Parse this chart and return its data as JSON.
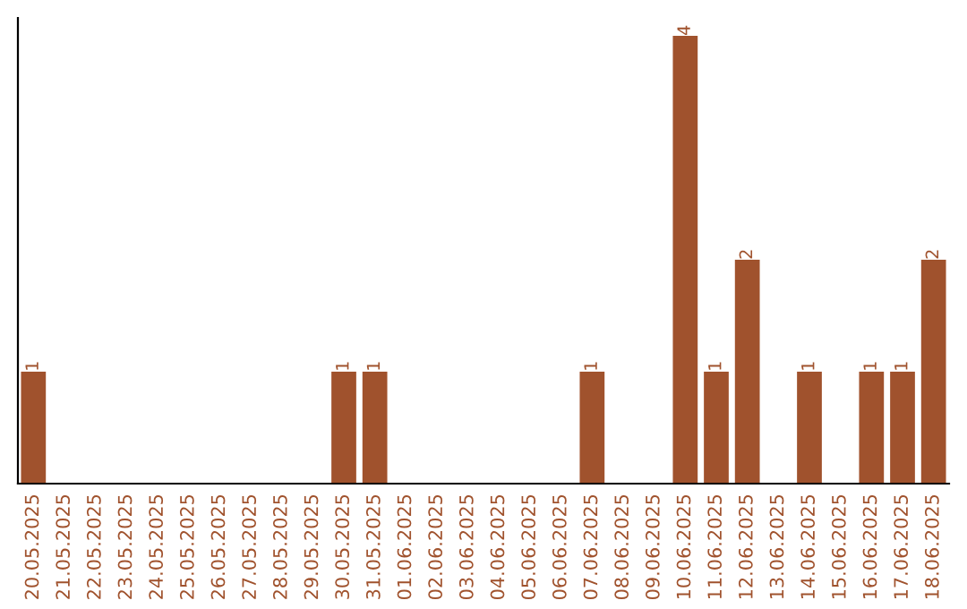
{
  "chart_data": {
    "type": "bar",
    "categories": [
      "20.05.2025",
      "21.05.2025",
      "22.05.2025",
      "23.05.2025",
      "24.05.2025",
      "25.05.2025",
      "26.05.2025",
      "27.05.2025",
      "28.05.2025",
      "29.05.2025",
      "30.05.2025",
      "31.05.2025",
      "01.06.2025",
      "02.06.2025",
      "03.06.2025",
      "04.06.2025",
      "05.06.2025",
      "06.06.2025",
      "07.06.2025",
      "08.06.2025",
      "09.06.2025",
      "10.06.2025",
      "11.06.2025",
      "12.06.2025",
      "13.06.2025",
      "14.06.2025",
      "15.06.2025",
      "16.06.2025",
      "17.06.2025",
      "18.06.2025"
    ],
    "values": [
      1,
      0,
      0,
      0,
      0,
      0,
      0,
      0,
      0,
      0,
      1,
      1,
      0,
      0,
      0,
      0,
      0,
      0,
      1,
      0,
      0,
      4,
      1,
      2,
      0,
      1,
      0,
      1,
      1,
      2
    ],
    "value_labels": [
      "1",
      null,
      null,
      null,
      null,
      null,
      null,
      null,
      null,
      null,
      "1",
      "1",
      null,
      null,
      null,
      null,
      null,
      null,
      "1",
      null,
      null,
      "4",
      "1",
      "2",
      null,
      "1",
      null,
      "1",
      "1",
      "2"
    ],
    "color": "#a0522d",
    "grid": false,
    "legend": false,
    "tick_labels": "x"
  }
}
